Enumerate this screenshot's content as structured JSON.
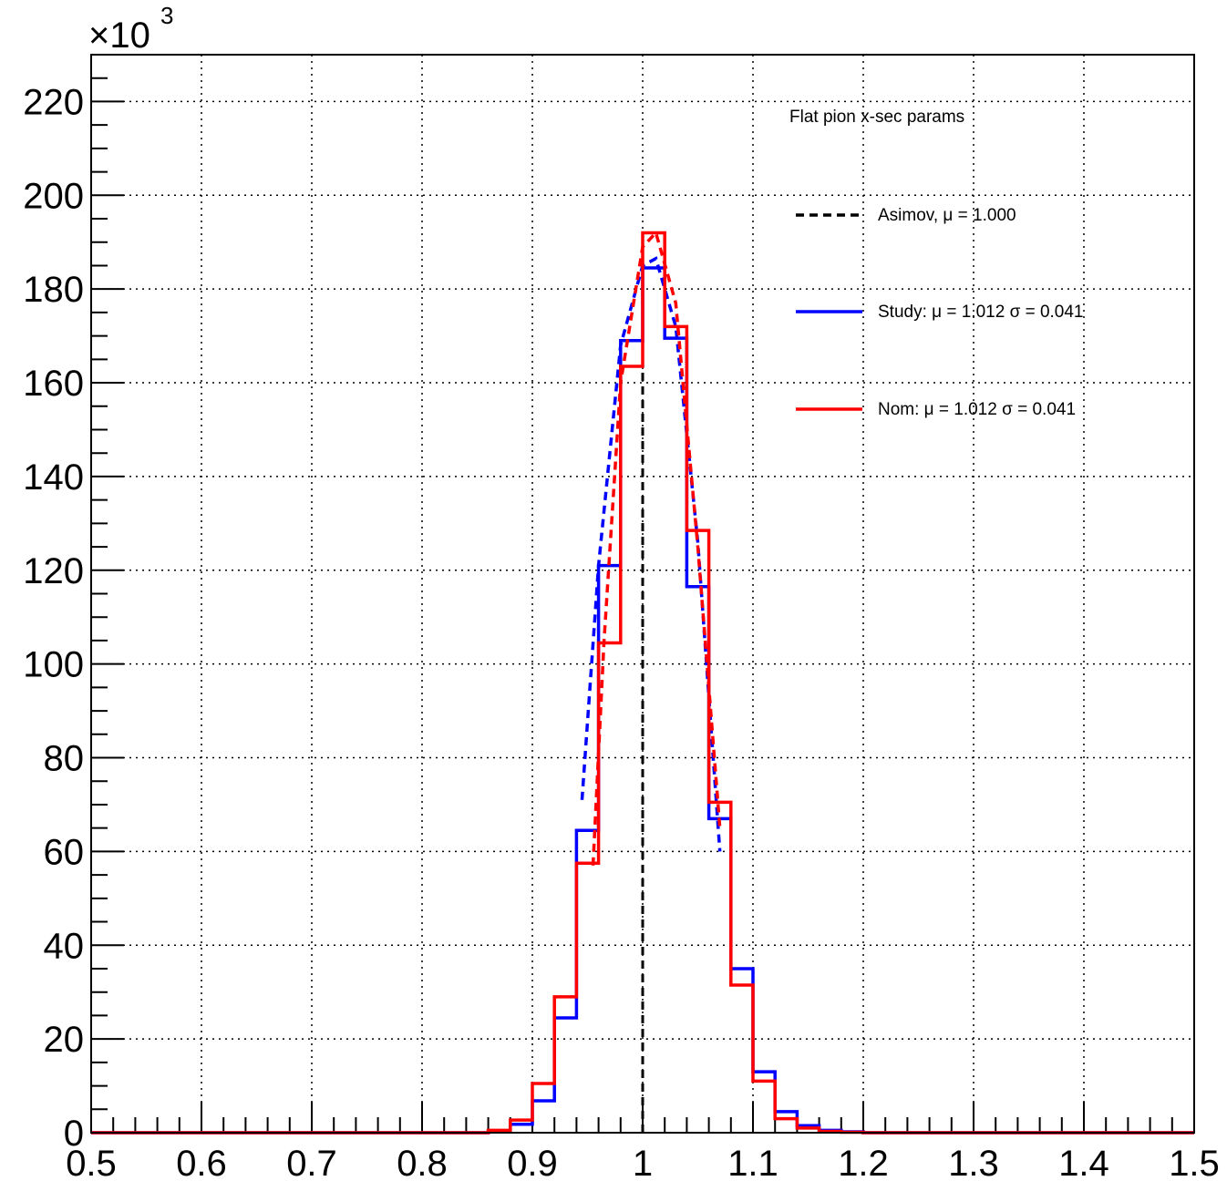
{
  "chart_data": {
    "type": "histogram",
    "title": "",
    "xlabel": "",
    "ylabel": "",
    "xlim": [
      0.5,
      1.5
    ],
    "ylim": [
      0,
      230
    ],
    "y_multiplier_label": {
      "base": "×10",
      "exponent": "3"
    },
    "x_ticks": [
      "0.5",
      "0.6",
      "0.7",
      "0.8",
      "0.9",
      "1",
      "1.1",
      "1.2",
      "1.3",
      "1.4",
      "1.5"
    ],
    "y_ticks": [
      "0",
      "20",
      "40",
      "60",
      "80",
      "100",
      "120",
      "140",
      "160",
      "180",
      "200",
      "220"
    ],
    "grid": true,
    "bin_edges": [
      0.86,
      0.88,
      0.9,
      0.92,
      0.94,
      0.96,
      0.98,
      1.0,
      1.02,
      1.04,
      1.06,
      1.08,
      1.1,
      1.12,
      1.14,
      1.16,
      1.18,
      1.2
    ],
    "legend": {
      "header": "Flat pion x-sec params",
      "position": "top-right",
      "entries": [
        {
          "label": "Asimov, μ = 1.000",
          "color": "#000000",
          "style": "dashed"
        },
        {
          "label": "Study: μ = 1.012 σ = 0.041",
          "color": "#0000ff",
          "style": "solid"
        },
        {
          "label": "Nom: μ = 1.012 σ = 0.041",
          "color": "#ff0000",
          "style": "solid"
        }
      ]
    },
    "asimov_line": {
      "x": 1.0,
      "color": "#000000"
    },
    "series": [
      {
        "name": "Study",
        "color": "#0000ff",
        "values": [
          0.3,
          1.8,
          6.8,
          24.5,
          64.5,
          121.0,
          169.0,
          184.5,
          169.5,
          116.5,
          67.0,
          35.0,
          13.0,
          4.5,
          1.5,
          0.5,
          0.2
        ],
        "fit": {
          "x": [
            0.945,
            0.96,
            0.98,
            1.0,
            1.012,
            1.03,
            1.05,
            1.07
          ],
          "y": [
            71.0,
            121.0,
            168.0,
            185.0,
            186.5,
            172.0,
            126.0,
            60.0
          ]
        }
      },
      {
        "name": "Nom",
        "color": "#ff0000",
        "values": [
          0.5,
          2.7,
          10.5,
          29.0,
          57.5,
          104.5,
          163.5,
          192.0,
          172.0,
          128.5,
          70.5,
          31.5,
          11.0,
          3.0,
          1.0,
          0.3,
          0.1
        ],
        "fit": {
          "x": [
            0.955,
            0.965,
            0.98,
            1.0,
            1.012,
            1.03,
            1.05,
            1.07
          ],
          "y": [
            57.0,
            105.0,
            160.0,
            189.0,
            192.0,
            177.0,
            125.0,
            65.0
          ]
        }
      }
    ]
  }
}
